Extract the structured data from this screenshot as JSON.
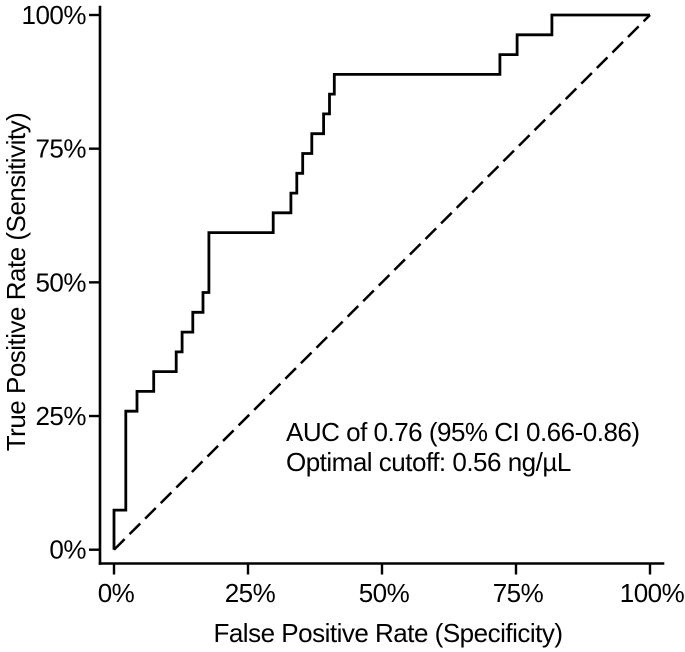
{
  "figure": {
    "background_color": "#ffffff",
    "line_color": "#000000"
  },
  "chart_data": {
    "type": "line",
    "subtype": "roc-step-curve",
    "title": "",
    "xlabel": "False Positive Rate (Specificity)",
    "ylabel": "True Positive Rate (Sensitivity)",
    "xlim": [
      0,
      100
    ],
    "ylim": [
      0,
      100
    ],
    "grid": false,
    "legend": "none",
    "x_ticks": {
      "values": [
        0,
        25,
        50,
        75,
        100
      ],
      "labels": [
        "0%",
        "25%",
        "50%",
        "75%",
        "100%"
      ]
    },
    "y_ticks": {
      "values": [
        0,
        25,
        50,
        75,
        100
      ],
      "labels": [
        "0%",
        "25%",
        "50%",
        "75%",
        "100%"
      ]
    },
    "series": [
      {
        "name": "ROC curve",
        "line_style": "solid",
        "color": "#000000",
        "points": [
          [
            0,
            0
          ],
          [
            0,
            7.4
          ],
          [
            2.2,
            7.4
          ],
          [
            2.2,
            25.9
          ],
          [
            4.3,
            25.9
          ],
          [
            4.3,
            29.6
          ],
          [
            7.4,
            29.6
          ],
          [
            7.4,
            33.3
          ],
          [
            11.6,
            33.3
          ],
          [
            11.6,
            37
          ],
          [
            12.7,
            37
          ],
          [
            12.7,
            40.7
          ],
          [
            14.7,
            40.7
          ],
          [
            14.7,
            44.4
          ],
          [
            16.6,
            44.4
          ],
          [
            16.6,
            48.1
          ],
          [
            17.7,
            48.1
          ],
          [
            17.7,
            59.3
          ],
          [
            29.7,
            59.3
          ],
          [
            29.7,
            63
          ],
          [
            33,
            63
          ],
          [
            33,
            66.7
          ],
          [
            34.1,
            66.7
          ],
          [
            34.1,
            70.4
          ],
          [
            35.2,
            70.4
          ],
          [
            35.2,
            74.1
          ],
          [
            36.9,
            74.1
          ],
          [
            36.9,
            77.8
          ],
          [
            39.1,
            77.8
          ],
          [
            39.1,
            81.5
          ],
          [
            40.2,
            81.5
          ],
          [
            40.2,
            85.2
          ],
          [
            41.1,
            85.2
          ],
          [
            41.1,
            88.9
          ],
          [
            72,
            88.9
          ],
          [
            72,
            92.6
          ],
          [
            75.2,
            92.6
          ],
          [
            75.2,
            96.3
          ],
          [
            81.7,
            96.3
          ],
          [
            81.7,
            100
          ],
          [
            100,
            100
          ]
        ]
      },
      {
        "name": "Reference diagonal (chance line)",
        "line_style": "dashed",
        "color": "#000000",
        "points": [
          [
            0,
            0
          ],
          [
            100,
            100
          ]
        ]
      }
    ],
    "annotation_lines": [
      "AUC of 0.76 (95% CI 0.66-0.86)",
      "Optimal cutoff: 0.56 ng/µL"
    ],
    "stats": {
      "auc": 0.76,
      "ci_95_lower": 0.66,
      "ci_95_upper": 0.86,
      "optimal_cutoff": "0.56 ng/µL"
    }
  }
}
